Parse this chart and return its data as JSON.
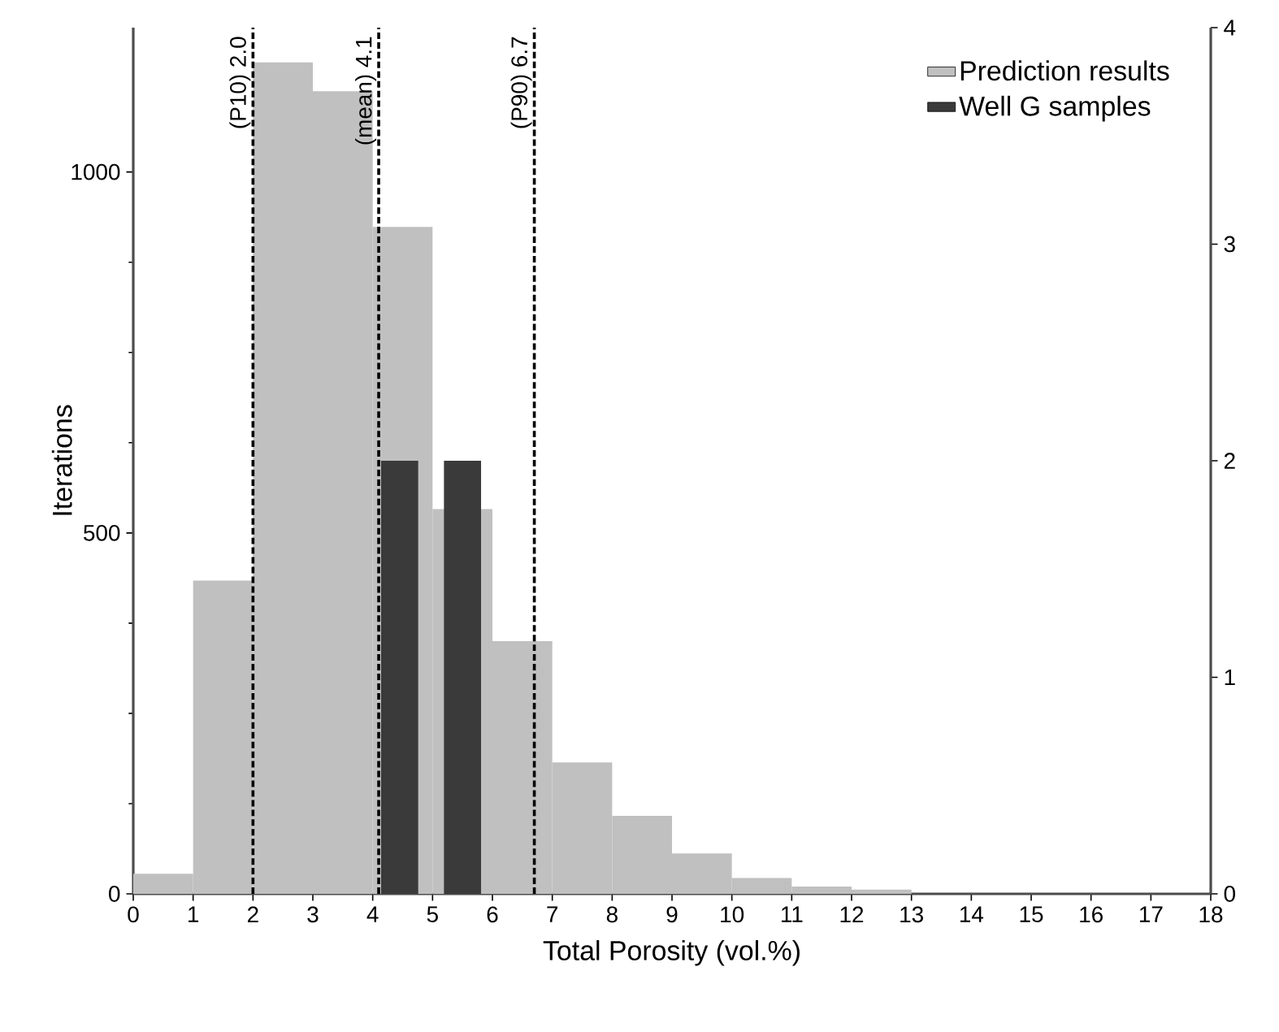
{
  "chart_data": {
    "type": "histogram",
    "xlabel": "Total Porosity (vol.%)",
    "ylabel": "Iterations",
    "bins": [
      0,
      1,
      2,
      3,
      4,
      5,
      6,
      7,
      8,
      9,
      10,
      11,
      12,
      13,
      14,
      15,
      16,
      17,
      18
    ],
    "series": [
      {
        "name": "Prediction results",
        "color": "#c0c0c0",
        "values": [
          28,
          434,
          1152,
          1112,
          924,
          533,
          350,
          182,
          108,
          56,
          22,
          10,
          6,
          0,
          0,
          0,
          0,
          0
        ]
      },
      {
        "name": "Well G samples",
        "type": "bar",
        "axis": "y2",
        "color": "#3a3a3a",
        "x": [
          4.45,
          5.5
        ],
        "values": [
          2,
          2
        ]
      }
    ],
    "xlim": [
      0,
      18
    ],
    "xticks": [
      0,
      1,
      2,
      3,
      4,
      5,
      6,
      7,
      8,
      9,
      10,
      11,
      12,
      13,
      14,
      15,
      16,
      17,
      18
    ],
    "ylim": [
      0,
      1200
    ],
    "yticks": [
      0,
      500,
      1000
    ],
    "y2lim": [
      0,
      4
    ],
    "y2ticks": [
      0,
      1,
      2,
      3,
      4
    ],
    "ref_lines": [
      {
        "axis": "x",
        "value": 2.0,
        "label": "(P10) 2.0",
        "color": "#000000",
        "line_style": "dashed"
      },
      {
        "axis": "x",
        "value": 4.1,
        "label": "(mean) 4.1",
        "color": "#000000",
        "line_style": "dashed"
      },
      {
        "axis": "x",
        "value": 6.7,
        "label": "(P90) 6.7",
        "color": "#000000",
        "line_style": "dashed"
      }
    ],
    "legend": "top right",
    "grid": false
  }
}
